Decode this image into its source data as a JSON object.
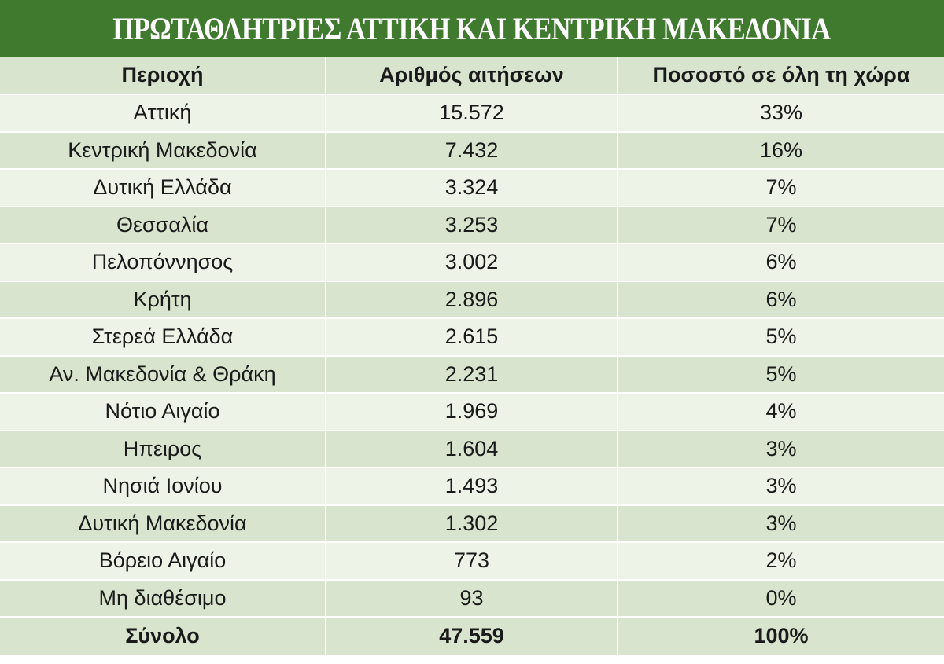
{
  "title": "ΠΡΩΤΑΘΛΗΤΡΙΕΣ ΑΤΤΙΚΗ ΚΑΙ ΚΕΝΤΡΙΚΗ ΜΑΚΕΔΟΝΙΑ",
  "colors": {
    "banner": "#3f7a2f",
    "row_light": "#eef3e8",
    "row_dark": "#d8e4cd"
  },
  "chart_data": {
    "type": "table",
    "title": "ΠΡΩΤΑΘΛΗΤΡΙΕΣ ΑΤΤΙΚΗ ΚΑΙ ΚΕΝΤΡΙΚΗ ΜΑΚΕΔΟΝΙΑ",
    "columns": [
      "Περιοχή",
      "Αριθμός αιτήσεων",
      "Ποσοστό σε όλη τη χώρα"
    ],
    "rows": [
      [
        "Αττική",
        "15.572",
        "33%"
      ],
      [
        "Κεντρική Μακεδονία",
        "7.432",
        "16%"
      ],
      [
        "Δυτική Ελλάδα",
        "3.324",
        "7%"
      ],
      [
        "Θεσσαλία",
        "3.253",
        "7%"
      ],
      [
        "Πελοπόννησος",
        "3.002",
        "6%"
      ],
      [
        "Κρήτη",
        "2.896",
        "6%"
      ],
      [
        "Στερεά Ελλάδα",
        "2.615",
        "5%"
      ],
      [
        "Αν. Μακεδονία & Θράκη",
        "2.231",
        "5%"
      ],
      [
        "Νότιο Αιγαίο",
        "1.969",
        "4%"
      ],
      [
        "Ηπειρος",
        "1.604",
        "3%"
      ],
      [
        "Νησιά Ιονίου",
        "1.493",
        "3%"
      ],
      [
        "Δυτική Μακεδονία",
        "1.302",
        "3%"
      ],
      [
        "Βόρειο Αιγαίο",
        "773",
        "2%"
      ],
      [
        "Μη διαθέσιμο",
        "93",
        "0%"
      ]
    ],
    "total": [
      "Σύνολο",
      "47.559",
      "100%"
    ]
  }
}
